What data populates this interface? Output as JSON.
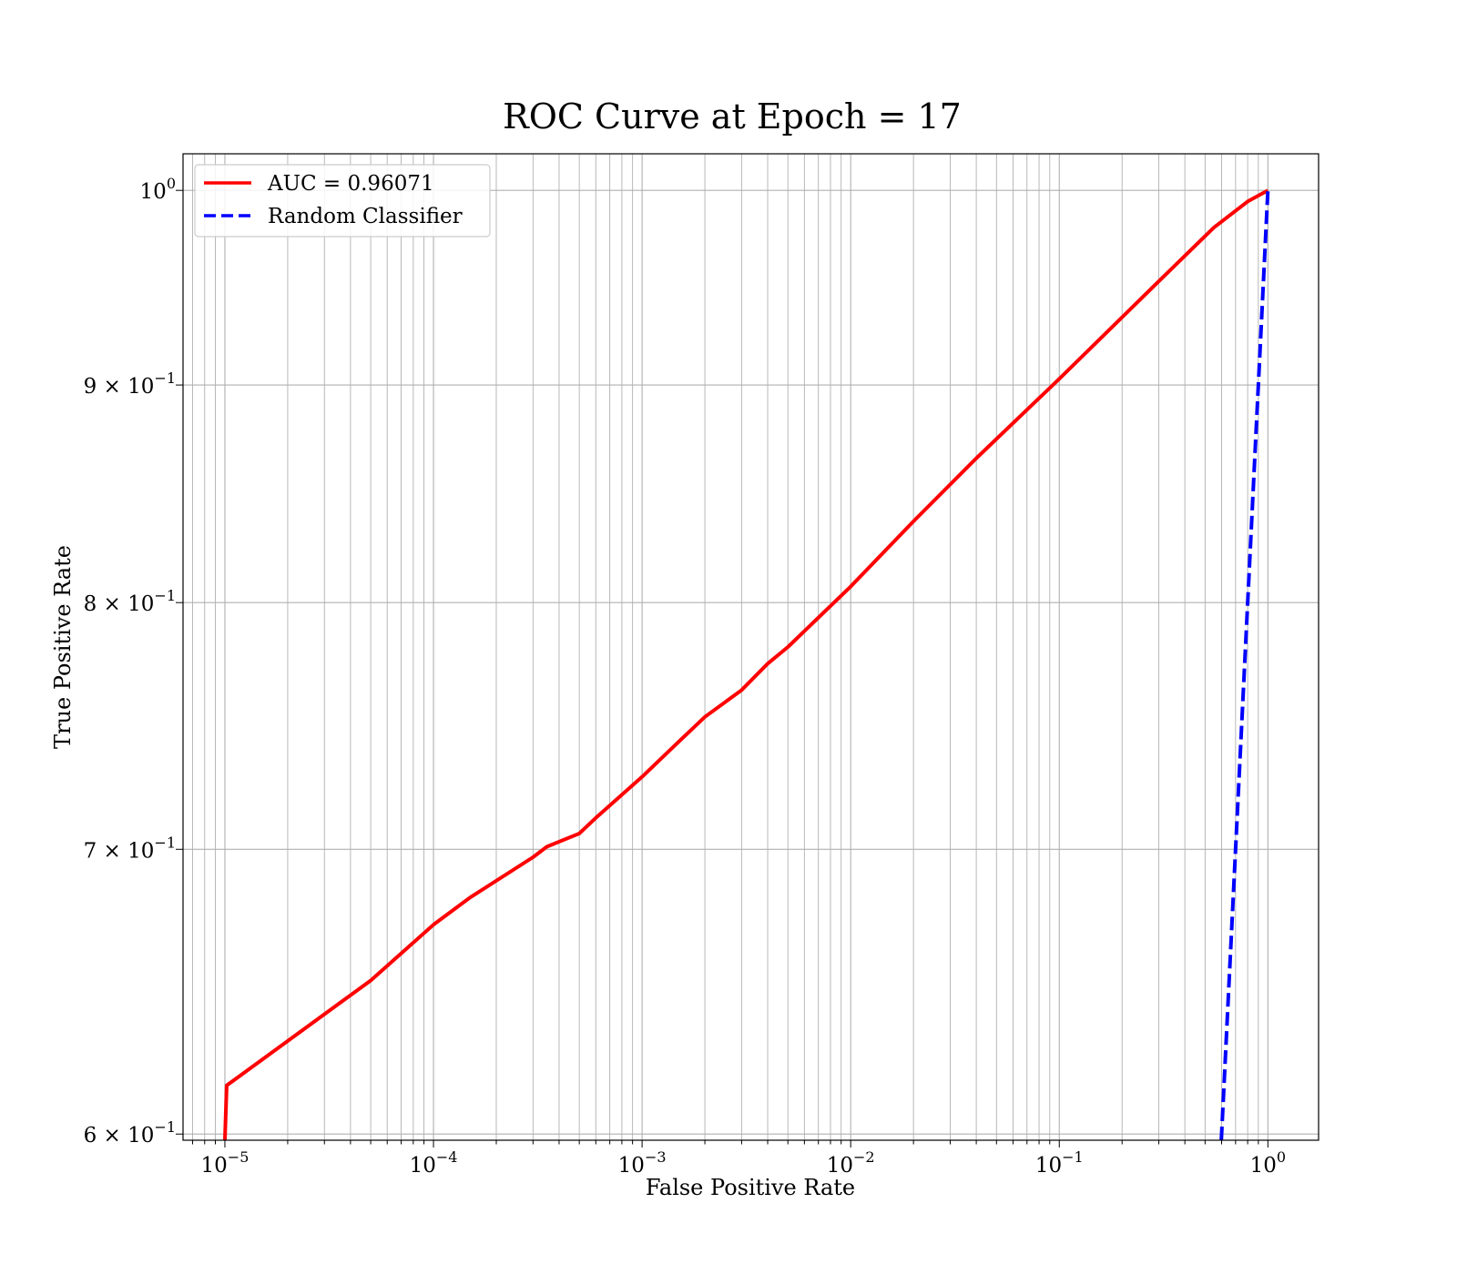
{
  "chart_data": {
    "type": "line",
    "title": "ROC Curve at Epoch = 17",
    "xlabel": "False Positive Rate",
    "ylabel": "True Positive Rate",
    "xscale": "log",
    "yscale": "log",
    "xlim": [
      6.3e-06,
      1.75
    ],
    "ylim": [
      0.598,
      1.02
    ],
    "grid": true,
    "legend_position": "upper left",
    "x_ticks": [
      {
        "value": 1e-05,
        "base": "10",
        "exp": "−5"
      },
      {
        "value": 0.0001,
        "base": "10",
        "exp": "−4"
      },
      {
        "value": 0.001,
        "base": "10",
        "exp": "−3"
      },
      {
        "value": 0.01,
        "base": "10",
        "exp": "−2"
      },
      {
        "value": 0.1,
        "base": "10",
        "exp": "−1"
      },
      {
        "value": 1,
        "base": "10",
        "exp": "0"
      }
    ],
    "y_ticks": [
      {
        "value": 1.0,
        "base": "10",
        "exp": "0"
      },
      {
        "value": 0.9,
        "base": "9 × 10",
        "exp": "−1"
      },
      {
        "value": 0.8,
        "base": "8 × 10",
        "exp": "−1"
      },
      {
        "value": 0.7,
        "base": "7 × 10",
        "exp": "−1"
      },
      {
        "value": 0.6,
        "base": "6 × 10",
        "exp": "−1"
      }
    ],
    "series": [
      {
        "name": "AUC = 0.96071",
        "color": "#ff0000",
        "style": "solid",
        "x": [
          1e-05,
          1.02e-05,
          5e-05,
          0.0001,
          0.00015,
          0.0003,
          0.00035,
          0.0005,
          0.0006,
          0.001,
          0.0015,
          0.002,
          0.003,
          0.004,
          0.005,
          0.01,
          0.02,
          0.04,
          0.1,
          0.3,
          0.55,
          0.8,
          1.0
        ],
        "y": [
          0.598,
          0.616,
          0.652,
          0.672,
          0.682,
          0.697,
          0.701,
          0.706,
          0.712,
          0.728,
          0.742,
          0.752,
          0.763,
          0.774,
          0.781,
          0.807,
          0.836,
          0.865,
          0.903,
          0.952,
          0.98,
          0.994,
          1.0
        ]
      },
      {
        "name": "Random Classifier",
        "color": "#0000ff",
        "style": "dashed",
        "x": [
          0.598,
          1.0
        ],
        "y": [
          0.598,
          1.0
        ]
      }
    ]
  }
}
